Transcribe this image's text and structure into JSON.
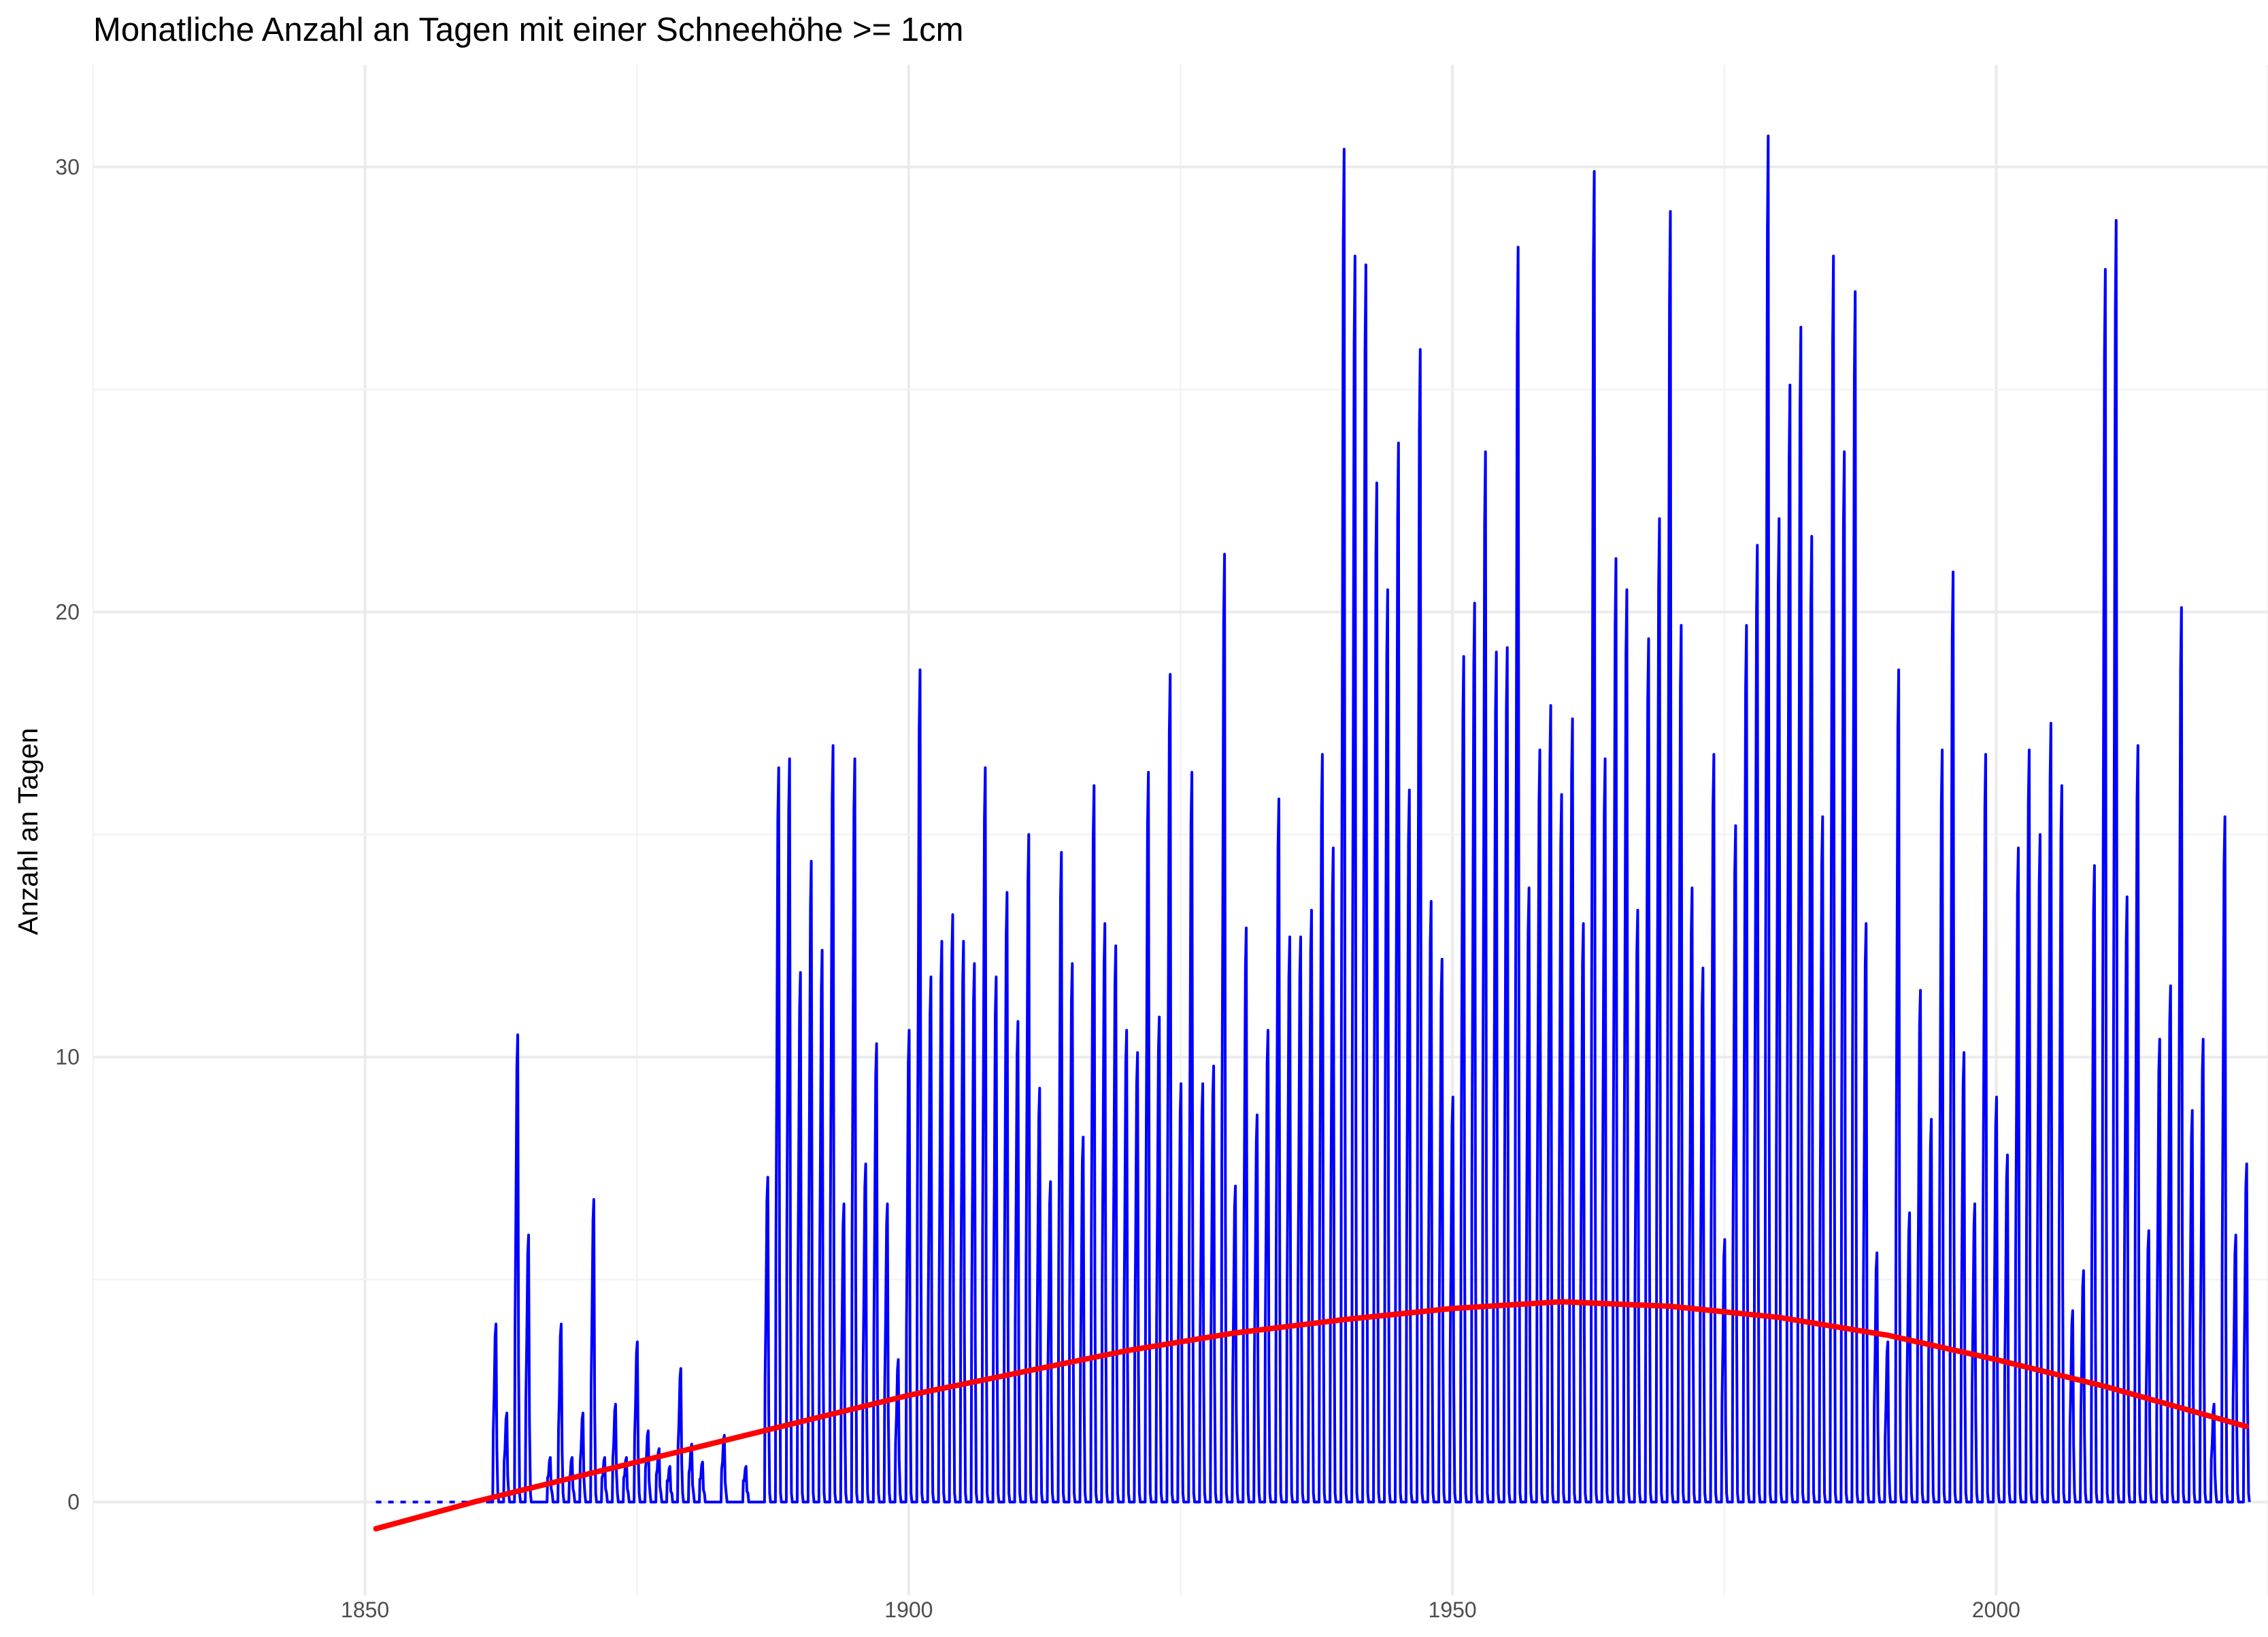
{
  "chart_data": {
    "type": "line",
    "title": "Monatliche Anzahl an Tagen mit einer Schneehöhe >= 1cm",
    "xlabel": "",
    "ylabel": "Anzahl an Tagen",
    "xlim": [
      1825,
      2025
    ],
    "ylim": [
      -2.1,
      32.3
    ],
    "x_ticks": [
      1850,
      1900,
      1950,
      2000
    ],
    "x_tick_labels": [
      "1850",
      "1900",
      "1950",
      "2000"
    ],
    "y_ticks": [
      0,
      10,
      20,
      30
    ],
    "y_tick_labels": [
      "0",
      "10",
      "20",
      "30"
    ],
    "grid": true,
    "series": [
      {
        "color": "#0000ff",
        "style": "solid",
        "note_gap": "dotted segment 1851-1861 at 0",
        "winter_peaks": [
          [
            1862,
            4.0
          ],
          [
            1863,
            2.0
          ],
          [
            1864,
            10.5
          ],
          [
            1865,
            6.0
          ],
          [
            1867,
            1.0
          ],
          [
            1868,
            4.0
          ],
          [
            1869,
            1.0
          ],
          [
            1870,
            2.0
          ],
          [
            1871,
            6.8
          ],
          [
            1872,
            1.0
          ],
          [
            1873,
            2.2
          ],
          [
            1874,
            1.0
          ],
          [
            1875,
            3.6
          ],
          [
            1876,
            1.6
          ],
          [
            1877,
            1.2
          ],
          [
            1878,
            0.8
          ],
          [
            1879,
            3.0
          ],
          [
            1880,
            1.3
          ],
          [
            1881,
            0.9
          ],
          [
            1883,
            1.5
          ],
          [
            1885,
            0.8
          ],
          [
            1887,
            7.3
          ],
          [
            1888,
            16.5
          ],
          [
            1889,
            16.7
          ],
          [
            1890,
            11.9
          ],
          [
            1891,
            14.4
          ],
          [
            1892,
            12.4
          ],
          [
            1893,
            17.0
          ],
          [
            1894,
            6.7
          ],
          [
            1895,
            16.7
          ],
          [
            1896,
            7.6
          ],
          [
            1897,
            10.3
          ],
          [
            1898,
            6.7
          ],
          [
            1899,
            3.2
          ],
          [
            1900,
            10.6
          ],
          [
            1901,
            18.7
          ],
          [
            1902,
            11.8
          ],
          [
            1903,
            12.6
          ],
          [
            1904,
            13.2
          ],
          [
            1905,
            12.6
          ],
          [
            1906,
            12.1
          ],
          [
            1907,
            16.5
          ],
          [
            1908,
            11.8
          ],
          [
            1909,
            13.7
          ],
          [
            1910,
            10.8
          ],
          [
            1911,
            15.0
          ],
          [
            1912,
            9.3
          ],
          [
            1913,
            7.2
          ],
          [
            1914,
            14.6
          ],
          [
            1915,
            12.1
          ],
          [
            1916,
            8.2
          ],
          [
            1917,
            16.1
          ],
          [
            1918,
            13.0
          ],
          [
            1919,
            12.5
          ],
          [
            1920,
            10.6
          ],
          [
            1921,
            10.1
          ],
          [
            1922,
            16.4
          ],
          [
            1923,
            10.9
          ],
          [
            1924,
            18.6
          ],
          [
            1925,
            9.4
          ],
          [
            1926,
            16.4
          ],
          [
            1927,
            9.4
          ],
          [
            1928,
            9.8
          ],
          [
            1929,
            21.3
          ],
          [
            1930,
            7.1
          ],
          [
            1931,
            12.9
          ],
          [
            1932,
            8.7
          ],
          [
            1933,
            10.6
          ],
          [
            1934,
            15.8
          ],
          [
            1935,
            12.7
          ],
          [
            1936,
            12.7
          ],
          [
            1937,
            13.3
          ],
          [
            1938,
            16.8
          ],
          [
            1939,
            14.7
          ],
          [
            1940,
            30.4
          ],
          [
            1941,
            28.0
          ],
          [
            1942,
            27.8
          ],
          [
            1943,
            22.9
          ],
          [
            1944,
            20.5
          ],
          [
            1945,
            23.8
          ],
          [
            1946,
            16.0
          ],
          [
            1947,
            25.9
          ],
          [
            1948,
            13.5
          ],
          [
            1949,
            12.2
          ],
          [
            1950,
            9.1
          ],
          [
            1951,
            19.0
          ],
          [
            1952,
            20.2
          ],
          [
            1953,
            23.6
          ],
          [
            1954,
            19.1
          ],
          [
            1955,
            19.2
          ],
          [
            1956,
            28.2
          ],
          [
            1957,
            13.8
          ],
          [
            1958,
            16.9
          ],
          [
            1959,
            17.9
          ],
          [
            1960,
            15.9
          ],
          [
            1961,
            17.6
          ],
          [
            1962,
            13.0
          ],
          [
            1963,
            29.9
          ],
          [
            1964,
            16.7
          ],
          [
            1965,
            21.2
          ],
          [
            1966,
            20.5
          ],
          [
            1967,
            13.3
          ],
          [
            1968,
            19.4
          ],
          [
            1969,
            22.1
          ],
          [
            1970,
            29.0
          ],
          [
            1971,
            19.7
          ],
          [
            1972,
            13.8
          ],
          [
            1973,
            12.0
          ],
          [
            1974,
            16.8
          ],
          [
            1975,
            5.9
          ],
          [
            1976,
            15.2
          ],
          [
            1977,
            19.7
          ],
          [
            1978,
            21.5
          ],
          [
            1979,
            30.7
          ],
          [
            1980,
            22.1
          ],
          [
            1981,
            25.1
          ],
          [
            1982,
            26.4
          ],
          [
            1983,
            21.7
          ],
          [
            1984,
            15.4
          ],
          [
            1985,
            28.0
          ],
          [
            1986,
            23.6
          ],
          [
            1987,
            27.2
          ],
          [
            1988,
            13.0
          ],
          [
            1989,
            5.6
          ],
          [
            1990,
            3.6
          ],
          [
            1991,
            18.7
          ],
          [
            1992,
            6.5
          ],
          [
            1993,
            11.5
          ],
          [
            1994,
            8.6
          ],
          [
            1995,
            16.9
          ],
          [
            1996,
            20.9
          ],
          [
            1997,
            10.1
          ],
          [
            1998,
            6.7
          ],
          [
            1999,
            16.8
          ],
          [
            2000,
            9.1
          ],
          [
            2001,
            7.8
          ],
          [
            2002,
            14.7
          ],
          [
            2003,
            16.9
          ],
          [
            2004,
            15.0
          ],
          [
            2005,
            17.5
          ],
          [
            2006,
            16.1
          ],
          [
            2007,
            4.3
          ],
          [
            2008,
            5.2
          ],
          [
            2009,
            14.3
          ],
          [
            2010,
            27.7
          ],
          [
            2011,
            28.8
          ],
          [
            2012,
            13.6
          ],
          [
            2013,
            17.0
          ],
          [
            2014,
            6.1
          ],
          [
            2015,
            10.4
          ],
          [
            2016,
            11.6
          ],
          [
            2017,
            20.1
          ],
          [
            2018,
            8.8
          ],
          [
            2019,
            10.4
          ],
          [
            2020,
            2.2
          ],
          [
            2021,
            15.4
          ],
          [
            2022,
            6.0
          ],
          [
            2023,
            7.6
          ]
        ]
      },
      {
        "color": "#ff0000",
        "style": "solid",
        "kind": "trend",
        "points": [
          [
            1851,
            -0.6
          ],
          [
            1860,
            0.0
          ],
          [
            1870,
            0.6
          ],
          [
            1880,
            1.2
          ],
          [
            1890,
            1.8
          ],
          [
            1900,
            2.4
          ],
          [
            1910,
            2.9
          ],
          [
            1920,
            3.4
          ],
          [
            1930,
            3.8
          ],
          [
            1940,
            4.1
          ],
          [
            1950,
            4.35
          ],
          [
            1960,
            4.5
          ],
          [
            1970,
            4.4
          ],
          [
            1980,
            4.15
          ],
          [
            1990,
            3.75
          ],
          [
            2000,
            3.2
          ],
          [
            2010,
            2.6
          ],
          [
            2023,
            1.7
          ]
        ]
      }
    ]
  }
}
